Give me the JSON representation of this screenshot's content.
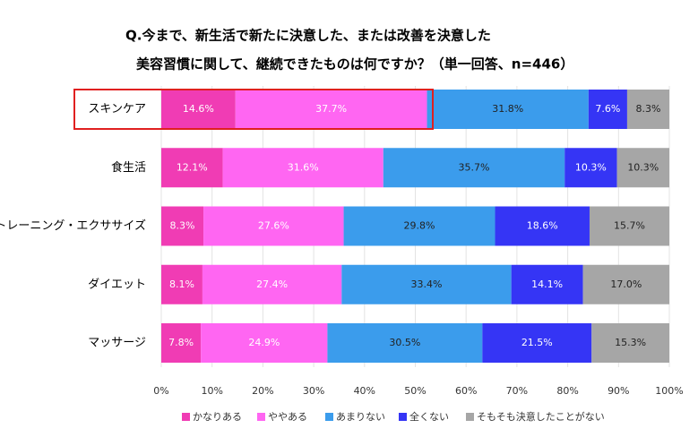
{
  "chart_data": {
    "type": "stacked-bar-horizontal",
    "title": [
      "Q.今まで、新生活で新たに決意した、または改善を決意した",
      "美容習慣に関して、継続できたものは何ですか？（単一回答、n=446）"
    ],
    "categories": [
      "スキンケア",
      "食生活",
      "トレーニング・エクササイズ",
      "ダイエット",
      "マッサージ"
    ],
    "series": [
      {
        "name": "かなりある",
        "color": "#f03cb4",
        "values": [
          14.6,
          12.1,
          8.3,
          8.1,
          7.8
        ],
        "value_labels": [
          "14.6%",
          "12.1%",
          "8.3%",
          "8.1%",
          "7.8%"
        ]
      },
      {
        "name": "ややある",
        "color": "#ff66f2",
        "values": [
          37.7,
          31.6,
          27.6,
          27.4,
          24.9
        ],
        "value_labels": [
          "37.7%",
          "31.6%",
          "27.6%",
          "27.4%",
          "24.9%"
        ]
      },
      {
        "name": "あまりない",
        "color": "#3b9cec",
        "values": [
          31.8,
          35.7,
          29.8,
          33.4,
          30.5
        ],
        "value_labels": [
          "31.8%",
          "35.7%",
          "29.8%",
          "33.4%",
          "30.5%"
        ]
      },
      {
        "name": "全くない",
        "color": "#3535f5",
        "values": [
          7.6,
          10.3,
          18.6,
          14.1,
          21.5
        ],
        "value_labels": [
          "7.6%",
          "10.3%",
          "18.6%",
          "14.1%",
          "21.5%"
        ]
      },
      {
        "name": "そもそも決意したことがない",
        "color": "#a6a6a6",
        "values": [
          8.3,
          10.3,
          15.7,
          17.0,
          15.3
        ],
        "value_labels": [
          "8.3%",
          "10.3%",
          "15.7%",
          "17.0%",
          "15.3%"
        ]
      }
    ],
    "xlim": [
      0,
      100
    ],
    "xticks": [
      {
        "value": 0,
        "label": "0%"
      },
      {
        "value": 10,
        "label": "10%"
      },
      {
        "value": 20,
        "label": "20%"
      },
      {
        "value": 30,
        "label": "30%"
      },
      {
        "value": 40,
        "label": "40%"
      },
      {
        "value": 50,
        "label": "50%"
      },
      {
        "value": 60,
        "label": "60%"
      },
      {
        "value": 70,
        "label": "70%"
      },
      {
        "value": 80,
        "label": "80%"
      },
      {
        "value": 90,
        "label": "90%"
      },
      {
        "value": 100,
        "label": "100%"
      }
    ],
    "grid": true
  }
}
